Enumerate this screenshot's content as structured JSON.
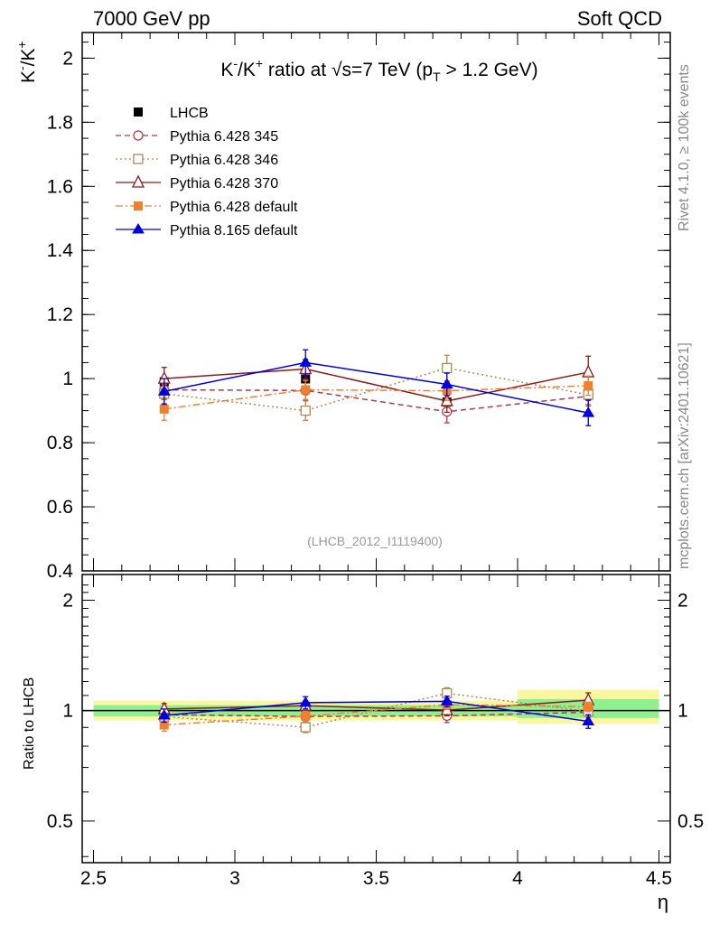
{
  "header": {
    "left": "7000 GeV pp",
    "right": "Soft QCD"
  },
  "side_labels": {
    "rivet": "Rivet 4.1.0, ≥ 100k events",
    "mcplots": "mcplots.cern.ch [arXiv:2401.10621]"
  },
  "chart_data": [
    {
      "type": "line",
      "title_parts": {
        "k": "K",
        "minus": "-",
        "slash": "/K",
        "plus": "+",
        "ratio_at": " ratio at ",
        "sqrt": "√",
        "s_eq": "s=7 TeV (p",
        "sub_t": "T",
        "cut": " > 1.2 GeV)"
      },
      "ylabel_parts": {
        "k1": "K",
        "minus": "-",
        "slash": "/K",
        "plus": "+"
      },
      "analysis_id": "(LHCB_2012_I1119400)",
      "xlim": [
        2.5,
        4.5
      ],
      "ylim": [
        0.4,
        2.08
      ],
      "yticks": [
        0.4,
        0.6,
        0.8,
        1.0,
        1.2,
        1.4,
        1.6,
        1.8,
        2.0
      ],
      "ytick_labels": [
        "0.4",
        "0.6",
        "0.8",
        "1",
        "1.2",
        "1.4",
        "1.6",
        "1.8",
        "2"
      ],
      "x": [
        2.75,
        3.25,
        3.75,
        4.25
      ],
      "data": {
        "name": "LHCB",
        "values": [
          0.99,
          0.999,
          0.927,
          0.955
        ],
        "errors": [
          0.02,
          0.02,
          0.02,
          0.02
        ],
        "color": "#000000"
      },
      "series": [
        {
          "name": "Pythia 6.428 345",
          "color": "#b03a48",
          "dash": "6,4",
          "marker": "circle-open",
          "values": [
            0.965,
            0.963,
            0.897,
            0.945
          ],
          "errors": [
            0.03,
            0.03,
            0.035,
            0.03
          ]
        },
        {
          "name": "Pythia 6.428 346",
          "color": "#b08850",
          "dash": "2,3",
          "marker": "square-open",
          "values": [
            0.953,
            0.9,
            1.033,
            0.95
          ],
          "errors": [
            0.03,
            0.03,
            0.04,
            0.03
          ]
        },
        {
          "name": "Pythia 6.428 370",
          "color": "#8b1a1a",
          "dash": "",
          "marker": "triangle-open",
          "values": [
            1.0,
            1.03,
            0.93,
            1.02
          ],
          "errors": [
            0.035,
            0.03,
            0.035,
            0.05
          ]
        },
        {
          "name": "Pythia 6.428 default",
          "color": "#f08030",
          "dash": "8,3,2,3",
          "marker": "square-filled",
          "values": [
            0.905,
            0.965,
            0.962,
            0.978
          ],
          "errors": [
            0.035,
            0.03,
            0.03,
            0.03
          ]
        },
        {
          "name": "Pythia 8.165 default",
          "color": "#0000dd",
          "dash": "",
          "marker": "triangle-filled",
          "values": [
            0.96,
            1.05,
            0.982,
            0.893
          ],
          "errors": [
            0.04,
            0.04,
            0.035,
            0.04
          ]
        }
      ]
    },
    {
      "type": "line",
      "ylabel": "Ratio to LHCB",
      "xlabel": "η",
      "log_y": true,
      "ylim": [
        0.385,
        2.35
      ],
      "yticks": [
        0.5,
        1,
        2
      ],
      "ytick_labels": [
        "0.5",
        "1",
        "2"
      ],
      "xticks": [
        2.5,
        3,
        3.5,
        4,
        4.5
      ],
      "xtick_labels": [
        "2.5",
        "3",
        "3.5",
        "4",
        "4.5"
      ],
      "bands": [
        {
          "x": [
            2.5,
            4.0
          ],
          "yellow": [
            0.94,
            1.065
          ],
          "green": [
            0.965,
            1.035
          ]
        },
        {
          "x": [
            4.0,
            4.5
          ],
          "yellow": [
            0.92,
            1.14
          ],
          "green": [
            0.955,
            1.075
          ]
        }
      ],
      "series_ratio": [
        {
          "name": "Pythia 6.428 345",
          "values": [
            0.975,
            0.964,
            0.968,
            0.99
          ],
          "errors": [
            0.03,
            0.03,
            0.04,
            0.03
          ]
        },
        {
          "name": "Pythia 6.428 346",
          "values": [
            0.963,
            0.901,
            1.115,
            0.995
          ],
          "errors": [
            0.03,
            0.03,
            0.04,
            0.03
          ]
        },
        {
          "name": "Pythia 6.428 370",
          "values": [
            1.01,
            1.031,
            1.003,
            1.068
          ],
          "errors": [
            0.035,
            0.03,
            0.035,
            0.05
          ]
        },
        {
          "name": "Pythia 6.428 default",
          "values": [
            0.914,
            0.966,
            1.038,
            1.024
          ],
          "errors": [
            0.035,
            0.03,
            0.03,
            0.03
          ]
        },
        {
          "name": "Pythia 8.165 default",
          "values": [
            0.97,
            1.051,
            1.06,
            0.935
          ],
          "errors": [
            0.04,
            0.04,
            0.035,
            0.04
          ]
        }
      ]
    }
  ]
}
